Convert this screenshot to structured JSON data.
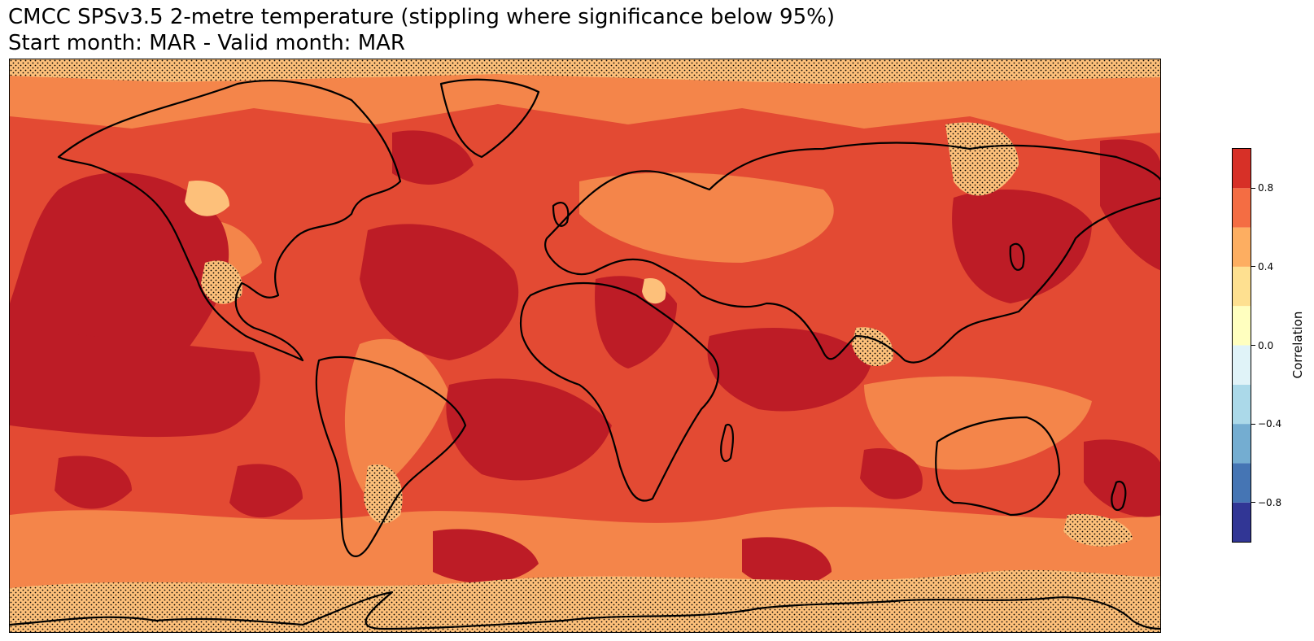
{
  "title": {
    "line1": "CMCC SPSv3.5 2-metre temperature (stippling where significance below 95%)",
    "line2": "Start month: MAR - Valid month: MAR"
  },
  "colorbar": {
    "label": "Correlation",
    "range": [
      -1.0,
      1.0
    ],
    "levels": [
      -1.0,
      -0.8,
      -0.6,
      -0.4,
      -0.2,
      0.0,
      0.2,
      0.4,
      0.6,
      0.8,
      1.0
    ],
    "colors": [
      "#313695",
      "#4575b4",
      "#74add1",
      "#abd9e9",
      "#e0f3f8",
      "#ffffbf",
      "#fee090",
      "#fdae61",
      "#f46d43",
      "#d73027",
      "#a50026"
    ],
    "ticks": [
      {
        "value": 0.8,
        "label": "0.8"
      },
      {
        "value": 0.4,
        "label": "0.4"
      },
      {
        "value": 0.0,
        "label": "0.0"
      },
      {
        "value": -0.4,
        "label": "−0.4"
      },
      {
        "value": -0.8,
        "label": "−0.8"
      }
    ]
  },
  "map": {
    "projection": "plate-carree",
    "extent": {
      "lon": [
        -180,
        180
      ],
      "lat": [
        -90,
        90
      ]
    },
    "field_colors": {
      "high": "#bd1c26",
      "mid_high": "#e34a33",
      "mid": "#f4854a",
      "low": "#fdc07a",
      "lowest": "#fdeb9c"
    },
    "coastline_color": "#000000",
    "stippling": "significance below 95%"
  }
}
